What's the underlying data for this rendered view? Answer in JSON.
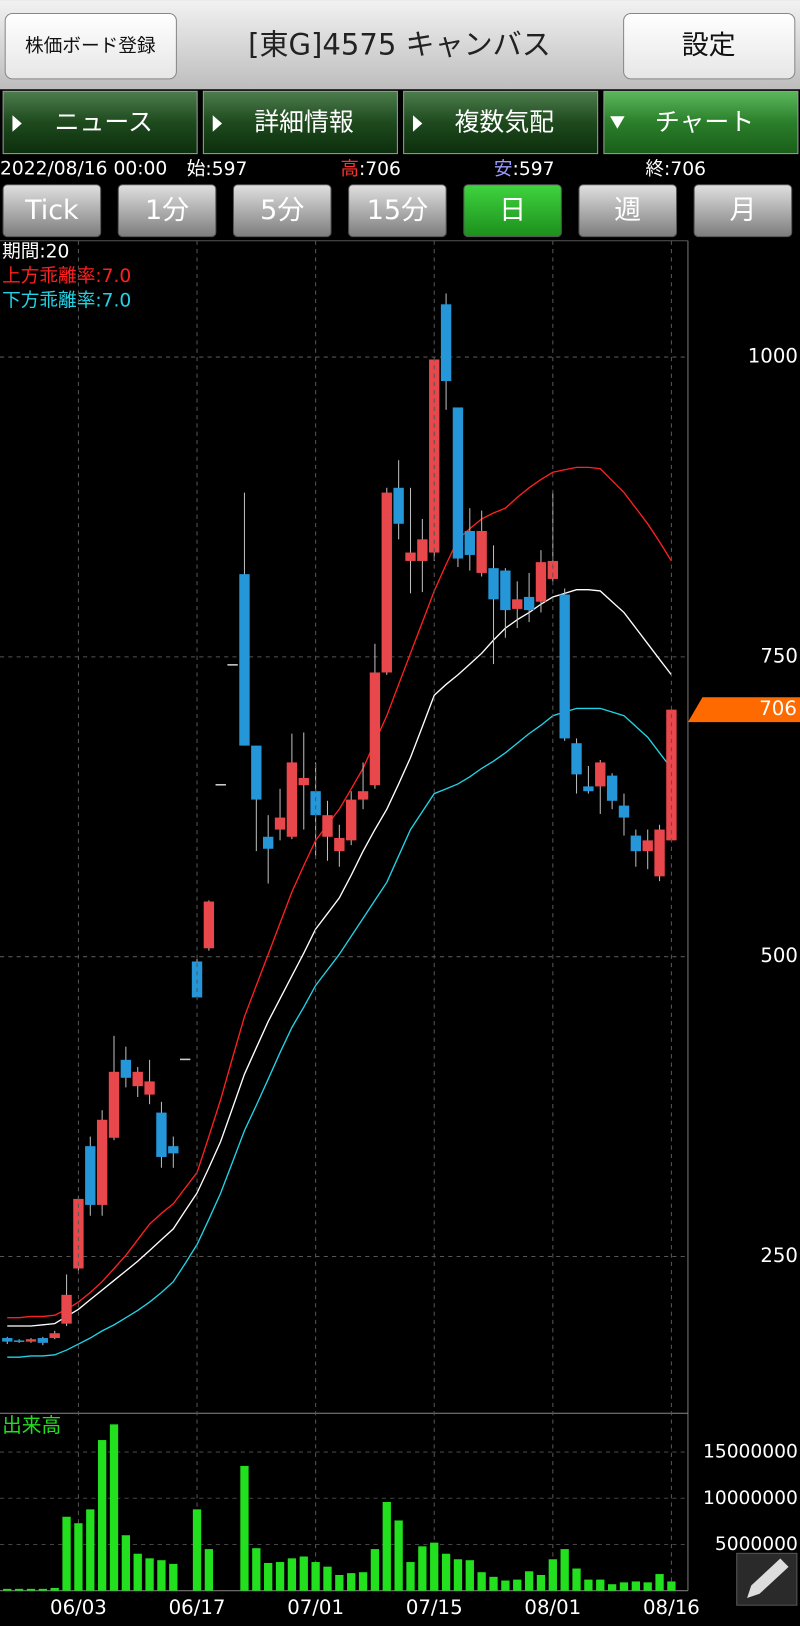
{
  "header": {
    "register_button": "株価ボード登録",
    "title": "[東G]4575 キャンバス",
    "settings_button": "設定"
  },
  "tabs": [
    "ニュース",
    "詳細情報",
    "複数気配",
    "チャート"
  ],
  "active_tab": 3,
  "quote": {
    "datetime": "2022/08/16 00:00",
    "items": [
      {
        "label": "始",
        "label_color": "#ffffff",
        "value": 597,
        "value_label": ":597"
      },
      {
        "label": "高",
        "label_color": "#ff3030",
        "value": 706,
        "value_label": ":706"
      },
      {
        "label": "安",
        "label_color": "#9a9aff",
        "value": 597,
        "value_label": ":597"
      },
      {
        "label": "終",
        "label_color": "#ffffff",
        "value": 706,
        "value_label": ":706"
      }
    ]
  },
  "periods": [
    "Tick",
    "1分",
    "5分",
    "15分",
    "日",
    "週",
    "月"
  ],
  "active_period": 4,
  "chart_data": [
    {
      "type": "candlestick",
      "open": [
        182,
        180,
        179,
        182,
        182,
        194,
        240,
        342,
        293,
        349,
        414,
        392,
        385,
        370,
        342,
        415,
        496,
        507,
        644,
        744,
        819,
        676,
        600,
        606,
        600,
        643,
        638,
        600,
        588,
        597,
        631,
        643,
        737,
        891,
        830,
        830,
        837,
        1044,
        958,
        855,
        820,
        824,
        822,
        790,
        800,
        796,
        815,
        802,
        678,
        642,
        642,
        651,
        626,
        601,
        588,
        567,
        597
      ],
      "high": [
        183,
        181,
        182,
        183,
        188,
        235,
        300,
        350,
        372,
        434,
        425,
        408,
        414,
        379,
        350,
        415,
        498,
        547,
        644,
        744,
        887,
        676,
        618,
        640,
        686,
        687,
        662,
        630,
        610,
        638,
        662,
        761,
        891,
        914,
        891,
        865,
        998,
        1053,
        958,
        874,
        872,
        843,
        824,
        813,
        820,
        839,
        887,
        807,
        682,
        659,
        664,
        653,
        636,
        606,
        606,
        610,
        706
      ],
      "low": [
        177,
        178,
        178,
        176,
        181,
        192,
        238,
        284,
        284,
        347,
        391,
        383,
        377,
        324,
        324,
        415,
        464,
        505,
        644,
        744,
        676,
        588,
        561,
        597,
        598,
        606,
        584,
        580,
        575,
        593,
        623,
        640,
        735,
        848,
        803,
        804,
        830,
        956,
        825,
        822,
        817,
        744,
        766,
        774,
        779,
        787,
        813,
        680,
        636,
        636,
        619,
        623,
        601,
        575,
        573,
        563,
        597
      ],
      "close": [
        179,
        179,
        181,
        178,
        186,
        218,
        298,
        293,
        364,
        404,
        399,
        404,
        396,
        333,
        336,
        415,
        466,
        546,
        644,
        744,
        676,
        631,
        590,
        616,
        662,
        649,
        618,
        618,
        599,
        631,
        638,
        737,
        887,
        861,
        837,
        848,
        998,
        980,
        832,
        835,
        855,
        798,
        789,
        798,
        789,
        829,
        830,
        682,
        652,
        638,
        662,
        630,
        616,
        588,
        597,
        606,
        706
      ],
      "up_color": "#e8474c",
      "down_color": "#2596d8",
      "flat_color": "#cccccc",
      "series": [
        {
          "name": "期間:20",
          "color": "#ffffff",
          "values": [
            192,
            192,
            192,
            193,
            194,
            200,
            206,
            214,
            222,
            230,
            238,
            246,
            255,
            264,
            273,
            288,
            303,
            324,
            346,
            374,
            402,
            424,
            446,
            465,
            484,
            503,
            523,
            536,
            549,
            568,
            588,
            606,
            623,
            644,
            666,
            692,
            718,
            727,
            735,
            744,
            753,
            764,
            774,
            781,
            787,
            794,
            800,
            803,
            806,
            806,
            805,
            796,
            787,
            774,
            761,
            748,
            735
          ]
        },
        {
          "name": "上方乖離率:7.0",
          "color": "#ff2020",
          "values": [
            199,
            199,
            200,
            200,
            201,
            206,
            212,
            220,
            229,
            240,
            251,
            264,
            277,
            286,
            294,
            307,
            320,
            350,
            381,
            416,
            450,
            476,
            502,
            528,
            554,
            576,
            597,
            610,
            623,
            640,
            657,
            679,
            701,
            727,
            753,
            779,
            805,
            827,
            848,
            857,
            865,
            870,
            874,
            883,
            891,
            898,
            904,
            906,
            908,
            908,
            907,
            897,
            887,
            874,
            861,
            846,
            830
          ]
        },
        {
          "name": "下方乖離率:7.0",
          "color": "#22d3e6",
          "values": [
            166,
            166,
            167,
            167,
            168,
            172,
            177,
            182,
            188,
            193,
            199,
            205,
            212,
            220,
            229,
            244,
            260,
            281,
            303,
            329,
            355,
            376,
            398,
            420,
            441,
            458,
            476,
            489,
            502,
            517,
            532,
            547,
            562,
            584,
            606,
            621,
            636,
            640,
            644,
            650,
            657,
            663,
            670,
            678,
            686,
            693,
            701,
            704,
            707,
            707,
            707,
            704,
            701,
            692,
            683,
            670,
            657
          ]
        }
      ],
      "ylim": [
        121,
        1097
      ],
      "yticks": [
        250,
        500,
        750,
        1000
      ],
      "grid": true,
      "last_price_color": "#ff6a00"
    },
    {
      "type": "bar",
      "title": "出来高",
      "categories": [
        null,
        null,
        null,
        null,
        null,
        null,
        "06/03",
        null,
        null,
        null,
        null,
        null,
        null,
        null,
        null,
        null,
        "06/17",
        null,
        null,
        null,
        null,
        null,
        null,
        null,
        null,
        null,
        "07/01",
        null,
        null,
        null,
        null,
        null,
        null,
        null,
        null,
        null,
        "07/15",
        null,
        null,
        null,
        null,
        null,
        null,
        null,
        null,
        null,
        "08/01",
        null,
        null,
        null,
        null,
        null,
        null,
        null,
        null,
        null,
        "08/16"
      ],
      "values": [
        200000,
        200000,
        200000,
        200000,
        300000,
        8000000,
        7300000,
        8800000,
        16300000,
        18000000,
        6000000,
        4000000,
        3500000,
        3300000,
        2900000,
        0,
        8800000,
        4500000,
        0,
        0,
        13500000,
        4600000,
        3000000,
        3100000,
        3500000,
        3700000,
        3100000,
        2600000,
        1700000,
        1900000,
        2000000,
        4500000,
        9600000,
        7600000,
        3100000,
        4800000,
        5200000,
        4000000,
        3400000,
        3300000,
        2000000,
        1500000,
        1100000,
        1200000,
        2100000,
        1700000,
        3400000,
        4500000,
        2400000,
        1200000,
        1200000,
        700000,
        900000,
        1000000,
        900000,
        1800000,
        1000000
      ],
      "color": "#22e01e",
      "ylim": [
        0,
        19200000
      ],
      "yticks": [
        5000000,
        10000000,
        15000000
      ],
      "grid": true
    }
  ]
}
